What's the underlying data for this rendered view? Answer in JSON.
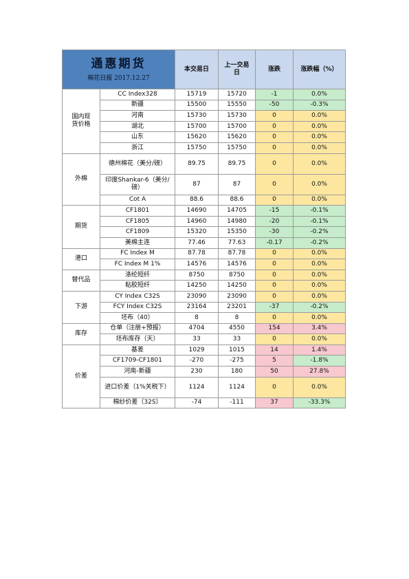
{
  "title": {
    "main": "通惠期货",
    "sub": "棉花日报 2017.12.27"
  },
  "headers": {
    "today": "本交易日",
    "prev": "上一交易日",
    "change": "涨跌",
    "pct": "涨跌幅（%）"
  },
  "groups": [
    {
      "category": "国内现货价格",
      "rows": [
        {
          "item": "CC Index328",
          "today": "15719",
          "prev": "15720",
          "change": "-1",
          "pct": "0.0%",
          "status": "down"
        },
        {
          "item": "新疆",
          "today": "15500",
          "prev": "15550",
          "change": "-50",
          "pct": "-0.3%",
          "status": "down"
        },
        {
          "item": "河南",
          "today": "15730",
          "prev": "15730",
          "change": "0",
          "pct": "0.0%",
          "status": "flat"
        },
        {
          "item": "湖北",
          "today": "15700",
          "prev": "15700",
          "change": "0",
          "pct": "0.0%",
          "status": "flat"
        },
        {
          "item": "山东",
          "today": "15620",
          "prev": "15620",
          "change": "0",
          "pct": "0.0%",
          "status": "flat"
        },
        {
          "item": "浙江",
          "today": "15750",
          "prev": "15750",
          "change": "0",
          "pct": "0.0%",
          "status": "flat"
        }
      ]
    },
    {
      "category": "外棉",
      "rows": [
        {
          "item": "德州棉花（美分/磅）",
          "today": "89.75",
          "prev": "89.75",
          "change": "0",
          "pct": "0.0%",
          "status": "flat",
          "tall": true
        },
        {
          "item": "印度Shankar-6（美分/磅）",
          "today": "87",
          "prev": "87",
          "change": "0",
          "pct": "0.0%",
          "status": "flat",
          "tall": true
        },
        {
          "item": "Cot A",
          "today": "88.6",
          "prev": "88.6",
          "change": "0",
          "pct": "0.0%",
          "status": "flat"
        }
      ]
    },
    {
      "category": "期货",
      "rows": [
        {
          "item": "CF1801",
          "today": "14690",
          "prev": "14705",
          "change": "-15",
          "pct": "-0.1%",
          "status": "down"
        },
        {
          "item": "CF1805",
          "today": "14960",
          "prev": "14980",
          "change": "-20",
          "pct": "-0.1%",
          "status": "down"
        },
        {
          "item": "CF1809",
          "today": "15320",
          "prev": "15350",
          "change": "-30",
          "pct": "-0.2%",
          "status": "down"
        },
        {
          "item": "美棉主连",
          "today": "77.46",
          "prev": "77.63",
          "change": "-0.17",
          "pct": "-0.2%",
          "status": "down"
        }
      ]
    },
    {
      "category": "港口",
      "rows": [
        {
          "item": "FC Index M",
          "today": "87.78",
          "prev": "87.78",
          "change": "0",
          "pct": "0.0%",
          "status": "flat"
        },
        {
          "item": "FC Index M 1%",
          "today": "14576",
          "prev": "14576",
          "change": "0",
          "pct": "0.0%",
          "status": "flat"
        }
      ]
    },
    {
      "category": "替代品",
      "rows": [
        {
          "item": "涤纶短纤",
          "today": "8750",
          "prev": "8750",
          "change": "0",
          "pct": "0.0%",
          "status": "flat"
        },
        {
          "item": "粘胶短纤",
          "today": "14250",
          "prev": "14250",
          "change": "0",
          "pct": "0.0%",
          "status": "flat"
        }
      ]
    },
    {
      "category": "下游",
      "rows": [
        {
          "item": "CY Index C32S",
          "today": "23090",
          "prev": "23090",
          "change": "0",
          "pct": "0.0%",
          "status": "flat"
        },
        {
          "item": "FCY Index C32S",
          "today": "23164",
          "prev": "23201",
          "change": "-37",
          "pct": "-0.2%",
          "status": "down"
        },
        {
          "item": "坯布（40）",
          "today": "8",
          "prev": "8",
          "change": "0",
          "pct": "0.0%",
          "status": "flat"
        }
      ]
    },
    {
      "category": "库存",
      "rows": [
        {
          "item": "仓单（注册+预报）",
          "today": "4704",
          "prev": "4550",
          "change": "154",
          "pct": "3.4%",
          "status": "up"
        },
        {
          "item": "坯布库存（天）",
          "today": "33",
          "prev": "33",
          "change": "0",
          "pct": "0.0%",
          "status": "flat"
        }
      ]
    },
    {
      "category": "价差",
      "rows": [
        {
          "item": "基差",
          "today": "1029",
          "prev": "1015",
          "change": "14",
          "pct": "1.4%",
          "status": "up"
        },
        {
          "item": "CF1709-CF1801",
          "today": "-270",
          "prev": "-275",
          "change": "5",
          "pct": "-1.8%",
          "status": "up",
          "pct_status": "down"
        },
        {
          "item": "河南-新疆",
          "today": "230",
          "prev": "180",
          "change": "50",
          "pct": "27.8%",
          "status": "up"
        },
        {
          "item": "进口价差（1%关税下）",
          "today": "1124",
          "prev": "1124",
          "change": "0",
          "pct": "0.0%",
          "status": "flat",
          "tall": true
        },
        {
          "item": "棉纱价差（32S）",
          "today": "-74",
          "prev": "-111",
          "change": "37",
          "pct": "-33.3%",
          "status": "up",
          "pct_status": "down"
        }
      ]
    }
  ],
  "colors": {
    "up_bg": "#f8c8cf",
    "down_bg": "#c6eccb",
    "flat_bg": "#fde7a0",
    "title_bg": "#4f81bd",
    "header_bg": "#c9d8ee"
  }
}
